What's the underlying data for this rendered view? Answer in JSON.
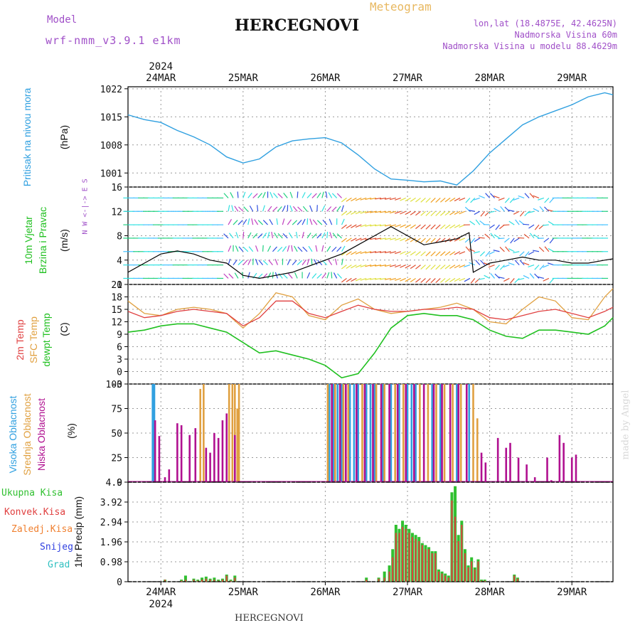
{
  "header": {
    "model_label": "Model",
    "model_name": "wrf-nmm_v3.9.1 e1km",
    "city": "HERCEGNOVI",
    "meteogram": "Meteogram",
    "lonlat": "lon,lat (18.4875E, 42.4625N)",
    "elevation": "Nadmorska Visina 60m",
    "model_elevation": "Nadmorska Visina u modelu 88.4629m",
    "footer_city": "HERCEGNOVI",
    "credit": "made by Angel"
  },
  "colors": {
    "pressure": "#30a0e0",
    "temp2m": "#e04040",
    "sfc": "#e0a040",
    "dewpt": "#20c020",
    "high_cloud": "#30a0e0",
    "mid_cloud": "#e0a040",
    "low_cloud": "#b01090",
    "total_precip": "#30c030",
    "conv_precip": "#e04040"
  },
  "axes_dates": {
    "year": "2024",
    "top": [
      "24MAR",
      "25MAR",
      "26MAR",
      "27MAR",
      "28MAR",
      "29MAR"
    ],
    "bottom": [
      "24MAR",
      "25MAR",
      "26MAR",
      "27MAR",
      "28MAR",
      "29MAR"
    ]
  },
  "panels": {
    "pressure": {
      "ylabel_name": "Pritisak na nivou mora",
      "ylabel_unit": "(hPa)"
    },
    "wind": {
      "ylabel_name1": "10m Vjetar",
      "ylabel_name2": "Brzina i Pravac",
      "ylabel_unit": "(m/s)",
      "compass": "N  W <-|-> E  S"
    },
    "temp": {
      "l1": "2m Temp",
      "l2": "SFC Temp",
      "l3": "dewpt Temp",
      "unit": "(C)"
    },
    "cloud": {
      "l1": "Visoka Oblacnost",
      "l2": "Srednja Oblacnost",
      "l3": "Niska Oblacnost",
      "unit": "(%)"
    },
    "precip": {
      "legend": [
        "Ukupna Kisa",
        "Konvek.Kisa",
        "Zaledj.Kisa",
        "Snijeg",
        "Grad"
      ],
      "legend_colors": [
        "#30c030",
        "#e04040",
        "#f08030",
        "#3040e0",
        "#30c0c0"
      ],
      "ylabel": "1hr Precip (mm)"
    }
  },
  "chart_data": [
    {
      "type": "line",
      "name": "pressure",
      "title": "",
      "xlabel": "",
      "ylabel": "(hPa)",
      "x_range_days": [
        23.6,
        29.5
      ],
      "ylim": [
        997.5,
        1022.5
      ],
      "yticks": [
        1001,
        1008,
        1015,
        1022
      ],
      "grid": true,
      "x": [
        23.6,
        23.8,
        24.0,
        24.2,
        24.4,
        24.6,
        24.8,
        25.0,
        25.2,
        25.4,
        25.6,
        25.8,
        26.0,
        26.2,
        26.4,
        26.6,
        26.8,
        27.0,
        27.2,
        27.4,
        27.6,
        27.8,
        28.0,
        28.2,
        28.4,
        28.6,
        28.8,
        29.0,
        29.2,
        29.4,
        29.5
      ],
      "series": [
        {
          "values": [
            1015.5,
            1014.3,
            1013.6,
            1011.6,
            1010.0,
            1008.0,
            1005.0,
            1003.5,
            1004.5,
            1007.5,
            1009.0,
            1009.5,
            1009.8,
            1008.5,
            1005.5,
            1002.0,
            999.5,
            999.2,
            998.8,
            999.0,
            998.0,
            1001.5,
            1006.0,
            1009.5,
            1013.0,
            1015.0,
            1016.5,
            1018.0,
            1020.0,
            1021.0,
            1020.5
          ]
        }
      ]
    },
    {
      "type": "line",
      "name": "wind",
      "title": "",
      "xlabel": "",
      "ylabel": "(m/s)",
      "x_range_days": [
        23.6,
        29.5
      ],
      "ylim": [
        0,
        16
      ],
      "yticks": [
        0,
        4,
        8,
        12,
        16
      ],
      "grid": true,
      "x": [
        23.6,
        23.8,
        24.0,
        24.2,
        24.4,
        24.6,
        24.8,
        25.0,
        25.2,
        25.4,
        25.6,
        25.8,
        26.0,
        26.2,
        26.4,
        26.6,
        26.8,
        27.0,
        27.2,
        27.4,
        27.6,
        27.75,
        27.8,
        28.0,
        28.2,
        28.4,
        28.6,
        28.8,
        29.0,
        29.2,
        29.4,
        29.5
      ],
      "series": [
        {
          "name": "",
          "values": [
            2.0,
            3.5,
            5.0,
            5.5,
            5.0,
            4.0,
            3.5,
            1.5,
            1.0,
            1.5,
            2.0,
            3.0,
            4.0,
            5.0,
            6.5,
            8.0,
            9.5,
            8.0,
            6.5,
            7.0,
            7.5,
            8.5,
            2.0,
            3.5,
            4.0,
            4.5,
            4.0,
            4.0,
            3.5,
            3.5,
            4.0,
            4.2
          ]
        }
      ]
    },
    {
      "type": "line",
      "name": "temperature",
      "title": "",
      "xlabel": "",
      "ylabel": "(C)",
      "x_range_days": [
        23.6,
        29.5
      ],
      "ylim": [
        -3,
        21
      ],
      "yticks": [
        -3,
        0,
        3,
        6,
        9,
        12,
        15,
        18,
        21
      ],
      "grid": true,
      "x": [
        23.6,
        23.8,
        24.0,
        24.2,
        24.4,
        24.6,
        24.8,
        25.0,
        25.2,
        25.4,
        25.6,
        25.8,
        26.0,
        26.2,
        26.4,
        26.6,
        26.8,
        27.0,
        27.2,
        27.4,
        27.6,
        27.8,
        28.0,
        28.2,
        28.4,
        28.6,
        28.8,
        29.0,
        29.2,
        29.4,
        29.5
      ],
      "series": [
        {
          "name": "2m Temp",
          "values": [
            14.5,
            13.0,
            13.5,
            14.5,
            15.0,
            14.5,
            14.0,
            11.0,
            13.0,
            17.0,
            17.0,
            14.0,
            13.0,
            14.5,
            16.0,
            15.0,
            14.5,
            14.5,
            15.0,
            15.0,
            15.5,
            15.0,
            13.0,
            12.5,
            13.5,
            14.5,
            15.0,
            14.0,
            13.0,
            14.5,
            15.5
          ]
        },
        {
          "name": "SFC Temp",
          "values": [
            17.0,
            14.0,
            13.5,
            15.0,
            15.5,
            15.0,
            14.0,
            10.5,
            14.0,
            19.0,
            18.0,
            13.5,
            12.5,
            16.0,
            17.5,
            15.0,
            14.0,
            14.5,
            15.0,
            15.5,
            16.5,
            15.0,
            12.0,
            11.5,
            15.0,
            18.0,
            17.0,
            13.0,
            12.5,
            18.0,
            20.0
          ]
        },
        {
          "name": "dewpt Temp",
          "values": [
            9.5,
            10.0,
            11.0,
            11.5,
            11.5,
            10.5,
            9.5,
            7.0,
            4.5,
            5.0,
            4.0,
            3.0,
            1.5,
            -1.5,
            -0.5,
            4.5,
            10.5,
            13.5,
            14.0,
            13.5,
            13.5,
            12.5,
            10.0,
            8.5,
            8.0,
            10.0,
            10.0,
            9.5,
            9.0,
            11.0,
            13.0
          ]
        }
      ]
    },
    {
      "type": "bar",
      "name": "cloud cover",
      "title": "",
      "xlabel": "",
      "ylabel": "(%)",
      "x_range_days": [
        23.6,
        29.5
      ],
      "ylim": [
        0,
        100
      ],
      "yticks": [
        0,
        25,
        50,
        75,
        100
      ],
      "grid": true,
      "series": [
        {
          "name": "Visoka Oblacnost",
          "x": [
            23.9,
            23.92,
            26.05,
            26.1,
            26.15,
            26.2,
            26.3,
            26.35,
            26.4,
            26.5,
            26.55,
            26.6,
            26.7,
            26.8,
            26.9,
            27.0,
            27.05,
            27.1,
            27.3,
            27.4,
            27.6,
            27.75
          ],
          "values": [
            100,
            100,
            100,
            100,
            100,
            100,
            100,
            100,
            100,
            100,
            100,
            100,
            100,
            100,
            100,
            100,
            100,
            100,
            100,
            100,
            100,
            100
          ]
        },
        {
          "name": "Srednja Oblacnost",
          "x": [
            24.48,
            24.52,
            24.83,
            24.87,
            24.9,
            24.93,
            24.95,
            26.03,
            26.12,
            26.22,
            26.28,
            26.45,
            26.62,
            26.72,
            26.85,
            26.95,
            27.15,
            27.25,
            27.35,
            27.45,
            27.55,
            27.65,
            27.8,
            27.85
          ],
          "values": [
            95,
            100,
            100,
            100,
            100,
            75,
            100,
            100,
            100,
            100,
            100,
            100,
            100,
            100,
            100,
            100,
            100,
            100,
            100,
            100,
            100,
            100,
            100,
            65
          ]
        },
        {
          "name": "Niska Oblacnost",
          "x": [
            23.93,
            23.98,
            24.05,
            24.1,
            24.2,
            24.25,
            24.35,
            24.42,
            24.55,
            24.6,
            24.65,
            24.7,
            24.75,
            24.8,
            24.9,
            26.08,
            26.18,
            26.25,
            26.38,
            26.48,
            26.58,
            26.68,
            26.78,
            26.88,
            26.98,
            27.08,
            27.2,
            27.32,
            27.42,
            27.52,
            27.62,
            27.72,
            27.9,
            27.95,
            28.1,
            28.2,
            28.25,
            28.35,
            28.45,
            28.55,
            28.7,
            28.75,
            28.85,
            28.9,
            29.0,
            29.05
          ],
          "values": [
            63,
            47,
            5,
            13,
            60,
            58,
            48,
            55,
            35,
            30,
            50,
            45,
            63,
            70,
            48,
            100,
            100,
            100,
            100,
            100,
            100,
            100,
            100,
            100,
            100,
            100,
            100,
            100,
            100,
            100,
            100,
            100,
            30,
            20,
            45,
            35,
            40,
            25,
            18,
            5,
            25,
            2,
            48,
            40,
            25,
            28
          ]
        }
      ]
    },
    {
      "type": "bar",
      "name": "precipitation",
      "title": "",
      "xlabel": "",
      "ylabel": "1hr Precip (mm)",
      "x_range_days": [
        23.6,
        29.5
      ],
      "ylim": [
        0,
        4.9
      ],
      "yticks": [
        0,
        0.98,
        1.96,
        2.94,
        3.92,
        4.9
      ],
      "grid": true,
      "x": [
        24.05,
        24.25,
        24.3,
        24.4,
        24.45,
        24.5,
        24.55,
        24.6,
        24.65,
        24.7,
        24.75,
        24.8,
        24.85,
        24.9,
        26.5,
        26.65,
        26.72,
        26.78,
        26.82,
        26.86,
        26.9,
        26.94,
        26.98,
        27.02,
        27.06,
        27.1,
        27.14,
        27.18,
        27.22,
        27.26,
        27.3,
        27.34,
        27.38,
        27.42,
        27.46,
        27.5,
        27.54,
        27.58,
        27.62,
        27.66,
        27.7,
        27.74,
        27.78,
        27.82,
        27.86,
        27.9,
        27.94,
        28.3,
        28.34
      ],
      "series": [
        {
          "name": "Ukupna Kisa",
          "values": [
            0.1,
            0.1,
            0.3,
            0.15,
            0.1,
            0.2,
            0.25,
            0.15,
            0.2,
            0.1,
            0.15,
            0.35,
            0.1,
            0.3,
            0.2,
            0.2,
            0.5,
            0.8,
            1.6,
            2.8,
            2.6,
            3.0,
            2.8,
            2.6,
            2.4,
            2.3,
            2.2,
            1.9,
            1.8,
            1.7,
            1.5,
            1.5,
            0.6,
            0.5,
            0.4,
            0.3,
            4.4,
            4.7,
            2.3,
            3.0,
            1.6,
            0.8,
            1.2,
            0.7,
            1.1,
            0.1,
            0.1,
            0.35,
            0.2
          ]
        },
        {
          "name": "Konvek.Kisa",
          "values": [
            0.1,
            0.05,
            0.1,
            0.1,
            0.05,
            0.1,
            0.15,
            0.1,
            0.1,
            0.05,
            0.1,
            0.3,
            0.05,
            0.2,
            0.1,
            0.15,
            0.2,
            0.5,
            1.2,
            2.4,
            2.4,
            2.7,
            2.6,
            2.4,
            2.2,
            2.1,
            2.0,
            1.8,
            1.6,
            1.6,
            1.4,
            1.4,
            0.5,
            0.4,
            0.3,
            0.2,
            4.0,
            3.2,
            2.0,
            2.8,
            1.4,
            0.7,
            1.0,
            0.6,
            1.0,
            0.05,
            0.05,
            0.3,
            0.15
          ]
        }
      ]
    }
  ]
}
